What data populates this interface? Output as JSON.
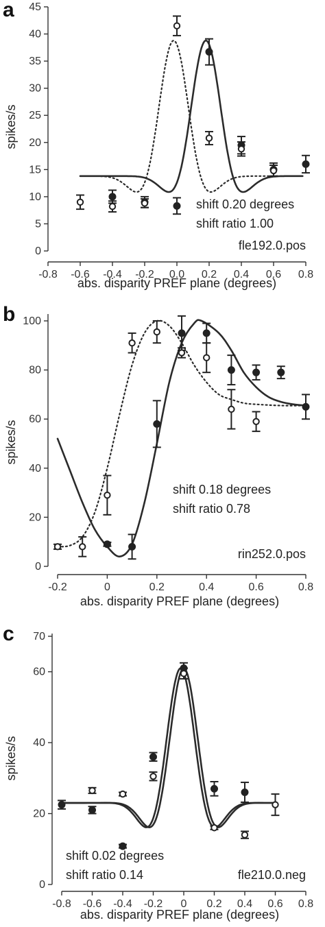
{
  "chart_data": [
    {
      "type": "line",
      "panel": "a",
      "xlabel": "abs. disparity PREF plane (degrees)",
      "ylabel": "spikes/s",
      "xlim": [
        -0.8,
        0.8
      ],
      "ylim": [
        0,
        45
      ],
      "xticks": [
        -0.8,
        -0.6,
        -0.4,
        -0.2,
        0,
        0.2,
        0.4,
        0.6,
        0.8
      ],
      "xtick_labels": [
        "-0.8",
        "-0.6",
        "-0.4",
        "-0.2",
        "0.0",
        "0.2",
        "0.4",
        "0.6",
        "0.8"
      ],
      "yticks": [
        0,
        5,
        10,
        15,
        20,
        25,
        30,
        35,
        40,
        45
      ],
      "ytick_labels": [
        "0",
        "5",
        "10",
        "15",
        "20",
        "25",
        "30",
        "35",
        "40",
        "45"
      ],
      "annotations": [
        "shift 0.20 degrees",
        "shift ratio 1.00",
        "fle192.0.pos"
      ],
      "series": [
        {
          "style": "filled",
          "points": [
            {
              "x": -0.4,
              "y": 10,
              "err": 1.2
            },
            {
              "x": -0.2,
              "y": 9,
              "err": 1.0
            },
            {
              "x": 0,
              "y": 8.3,
              "err": 1.5
            },
            {
              "x": 0.2,
              "y": 36.7,
              "err": 2.4
            },
            {
              "x": 0.4,
              "y": 19.5,
              "err": 1.6
            },
            {
              "x": 0.6,
              "y": 15,
              "err": 1.2
            },
            {
              "x": 0.8,
              "y": 16,
              "err": 1.6
            }
          ]
        },
        {
          "style": "open",
          "points": [
            {
              "x": -0.6,
              "y": 9,
              "err": 1.3
            },
            {
              "x": -0.4,
              "y": 8.2,
              "err": 1.0
            },
            {
              "x": -0.2,
              "y": 8.8,
              "err": 0.8
            },
            {
              "x": 0,
              "y": 41.5,
              "err": 1.8
            },
            {
              "x": 0.2,
              "y": 20.8,
              "err": 1.2
            },
            {
              "x": 0.4,
              "y": 18.8,
              "err": 1.3
            },
            {
              "x": 0.6,
              "y": 14.8,
              "err": 1.0
            }
          ]
        },
        {
          "style": "solid-curve",
          "fit": {
            "base": 13.8,
            "amp": 25,
            "center": 0.18,
            "sigma": 0.13,
            "freq": 1.5,
            "phase": 0,
            "x_range": [
              -0.6,
              0.78
            ]
          }
        },
        {
          "style": "dotted-curve",
          "fit": {
            "base": 13.8,
            "amp": 25,
            "center": -0.02,
            "sigma": 0.13,
            "freq": 1.5,
            "phase": 0,
            "x_range": [
              -0.6,
              0.78
            ]
          }
        }
      ]
    },
    {
      "type": "line",
      "panel": "b",
      "xlabel": "abs. disparity PREF plane (degrees)",
      "ylabel": "spikes/s",
      "xlim": [
        -0.2,
        0.8
      ],
      "ylim": [
        0,
        100
      ],
      "xticks": [
        -0.2,
        0,
        0.2,
        0.4,
        0.6,
        0.8
      ],
      "xtick_labels": [
        "-0.2",
        "0",
        "0.2",
        "0.4",
        "0.6",
        "0.8"
      ],
      "yticks": [
        0,
        20,
        40,
        60,
        80,
        100
      ],
      "ytick_labels": [
        "0",
        "20",
        "40",
        "60",
        "80",
        "100"
      ],
      "annotations": [
        "shift 0.18 degrees",
        "shift ratio 0.78",
        "rin252.0.pos"
      ],
      "series": [
        {
          "style": "filled",
          "points": [
            {
              "x": 0,
              "y": 9,
              "err": 0.8
            },
            {
              "x": 0.1,
              "y": 8,
              "err": 5
            },
            {
              "x": 0.2,
              "y": 58,
              "err": 9.5
            },
            {
              "x": 0.3,
              "y": 95,
              "err": 7
            },
            {
              "x": 0.4,
              "y": 95,
              "err": 4
            },
            {
              "x": 0.5,
              "y": 80,
              "err": 6
            },
            {
              "x": 0.6,
              "y": 79,
              "err": 3
            },
            {
              "x": 0.7,
              "y": 79,
              "err": 2.5
            },
            {
              "x": 0.8,
              "y": 65,
              "err": 5
            }
          ]
        },
        {
          "style": "open",
          "points": [
            {
              "x": -0.2,
              "y": 8,
              "err": 1.0
            },
            {
              "x": -0.1,
              "y": 8,
              "err": 4
            },
            {
              "x": 0,
              "y": 29,
              "err": 8
            },
            {
              "x": 0.1,
              "y": 91,
              "err": 4
            },
            {
              "x": 0.2,
              "y": 95.5,
              "err": 4.5
            },
            {
              "x": 0.3,
              "y": 87,
              "err": 2
            },
            {
              "x": 0.4,
              "y": 85,
              "err": 6
            },
            {
              "x": 0.5,
              "y": 64,
              "err": 8
            },
            {
              "x": 0.6,
              "y": 59,
              "err": 4
            }
          ]
        },
        {
          "style": "solid-curve",
          "points": [
            {
              "x": -0.2,
              "y": 52
            },
            {
              "x": -0.15,
              "y": 39
            },
            {
              "x": -0.1,
              "y": 26
            },
            {
              "x": -0.05,
              "y": 15
            },
            {
              "x": 0,
              "y": 8
            },
            {
              "x": 0.05,
              "y": 4
            },
            {
              "x": 0.1,
              "y": 9
            },
            {
              "x": 0.15,
              "y": 26
            },
            {
              "x": 0.2,
              "y": 50
            },
            {
              "x": 0.25,
              "y": 75
            },
            {
              "x": 0.3,
              "y": 91
            },
            {
              "x": 0.35,
              "y": 99
            },
            {
              "x": 0.38,
              "y": 100
            },
            {
              "x": 0.45,
              "y": 95
            },
            {
              "x": 0.5,
              "y": 88
            },
            {
              "x": 0.55,
              "y": 79
            },
            {
              "x": 0.6,
              "y": 73
            },
            {
              "x": 0.65,
              "y": 69
            },
            {
              "x": 0.7,
              "y": 67
            },
            {
              "x": 0.75,
              "y": 66
            },
            {
              "x": 0.8,
              "y": 65.5
            }
          ]
        },
        {
          "style": "dotted-curve",
          "points": [
            {
              "x": -0.2,
              "y": 8
            },
            {
              "x": -0.15,
              "y": 8.5
            },
            {
              "x": -0.1,
              "y": 12
            },
            {
              "x": -0.05,
              "y": 22
            },
            {
              "x": 0,
              "y": 40
            },
            {
              "x": 0.05,
              "y": 62
            },
            {
              "x": 0.1,
              "y": 82
            },
            {
              "x": 0.15,
              "y": 95
            },
            {
              "x": 0.2,
              "y": 100
            },
            {
              "x": 0.25,
              "y": 98
            },
            {
              "x": 0.3,
              "y": 91
            },
            {
              "x": 0.35,
              "y": 82
            },
            {
              "x": 0.4,
              "y": 75
            },
            {
              "x": 0.45,
              "y": 70
            },
            {
              "x": 0.5,
              "y": 68
            },
            {
              "x": 0.55,
              "y": 66.5
            },
            {
              "x": 0.6,
              "y": 66
            },
            {
              "x": 0.7,
              "y": 65.5
            },
            {
              "x": 0.8,
              "y": 65.5
            }
          ]
        }
      ]
    },
    {
      "type": "line",
      "panel": "c",
      "xlabel": "abs. disparity PREF plane (degrees)",
      "ylabel": "spikes/s",
      "xlim": [
        -0.8,
        0.8
      ],
      "ylim": [
        0,
        70
      ],
      "xticks": [
        -0.8,
        -0.6,
        -0.4,
        -0.2,
        0,
        0.2,
        0.4,
        0.6,
        0.8
      ],
      "xtick_labels": [
        "-0.8",
        "-0.6",
        "-0.4",
        "-0.2",
        "0",
        "0.2",
        "0.4",
        "0.6",
        "0.8"
      ],
      "yticks": [
        0,
        20,
        40,
        60,
        70
      ],
      "ytick_labels": [
        "0",
        "20",
        "40",
        "60",
        "70"
      ],
      "annotations": [
        "shift 0.02 degrees",
        "shift ratio 0.14",
        "fle210.0.neg"
      ],
      "series": [
        {
          "style": "filled",
          "points": [
            {
              "x": -0.8,
              "y": 22.5,
              "err": 1.2
            },
            {
              "x": -0.6,
              "y": 21,
              "err": 1.0
            },
            {
              "x": -0.4,
              "y": 10.8,
              "err": 0.5
            },
            {
              "x": -0.2,
              "y": 36,
              "err": 1.2
            },
            {
              "x": 0,
              "y": 61,
              "err": 1.5
            },
            {
              "x": 0.2,
              "y": 27,
              "err": 2
            },
            {
              "x": 0.4,
              "y": 26,
              "err": 2.8
            }
          ]
        },
        {
          "style": "open",
          "points": [
            {
              "x": -0.6,
              "y": 26.5,
              "err": 0.8
            },
            {
              "x": -0.4,
              "y": 25.5,
              "err": 0.5
            },
            {
              "x": -0.2,
              "y": 30.5,
              "err": 1.2
            },
            {
              "x": 0,
              "y": 59.5,
              "err": 1.5
            },
            {
              "x": 0.2,
              "y": 16,
              "err": 0.5
            },
            {
              "x": 0.4,
              "y": 14,
              "err": 1
            },
            {
              "x": 0.6,
              "y": 22.5,
              "err": 3
            }
          ]
        },
        {
          "style": "solid-curve",
          "fit": {
            "base": 23,
            "amp": 38,
            "center": -0.02,
            "sigma": 0.14,
            "freq": 1.62,
            "phase": 0,
            "x_range": [
              -0.8,
              0.6
            ]
          }
        },
        {
          "style": "solid-curve-2",
          "fit": {
            "base": 23,
            "amp": 38,
            "center": 0.0,
            "sigma": 0.14,
            "freq": 1.62,
            "phase": 0,
            "x_range": [
              -0.8,
              0.6
            ]
          }
        }
      ]
    }
  ]
}
